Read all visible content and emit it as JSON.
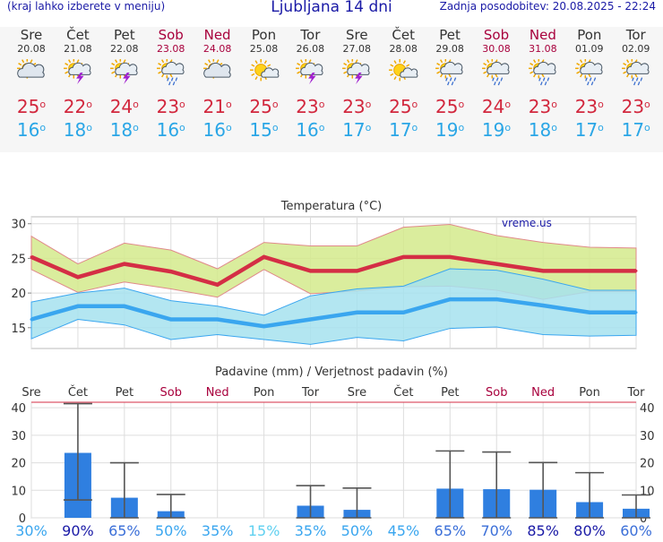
{
  "header": {
    "note": "(kraj lahko izberete v meniju)",
    "title": "Ljubljana 14 dni",
    "updated": "Zadnja posodobitev: 20.08.2025 - 22:24"
  },
  "days": [
    {
      "name": "Sre",
      "date": "20.08",
      "weekend": false,
      "icon": "cloud-sun-icon",
      "tmax": "25",
      "tmin": "16"
    },
    {
      "name": "Čet",
      "date": "21.08",
      "weekend": false,
      "icon": "sun-thunder-icon",
      "tmax": "22",
      "tmin": "18"
    },
    {
      "name": "Pet",
      "date": "22.08",
      "weekend": false,
      "icon": "sun-thunder-icon",
      "tmax": "24",
      "tmin": "18"
    },
    {
      "name": "Sob",
      "date": "23.08",
      "weekend": true,
      "icon": "sun-rain-icon",
      "tmax": "23",
      "tmin": "16"
    },
    {
      "name": "Ned",
      "date": "24.08",
      "weekend": true,
      "icon": "cloud-sun-icon",
      "tmax": "21",
      "tmin": "16"
    },
    {
      "name": "Pon",
      "date": "25.08",
      "weekend": false,
      "icon": "sun-cloud-icon",
      "tmax": "25",
      "tmin": "15"
    },
    {
      "name": "Tor",
      "date": "26.08",
      "weekend": false,
      "icon": "sun-thunder-icon",
      "tmax": "23",
      "tmin": "16"
    },
    {
      "name": "Sre",
      "date": "27.08",
      "weekend": false,
      "icon": "sun-thunder-icon",
      "tmax": "23",
      "tmin": "17"
    },
    {
      "name": "Čet",
      "date": "28.08",
      "weekend": false,
      "icon": "sun-cloud-icon",
      "tmax": "25",
      "tmin": "17"
    },
    {
      "name": "Pet",
      "date": "29.08",
      "weekend": false,
      "icon": "sun-rain-icon",
      "tmax": "25",
      "tmin": "19"
    },
    {
      "name": "Sob",
      "date": "30.08",
      "weekend": true,
      "icon": "sun-rain-icon",
      "tmax": "24",
      "tmin": "19"
    },
    {
      "name": "Ned",
      "date": "31.08",
      "weekend": true,
      "icon": "sun-rain-icon",
      "tmax": "23",
      "tmin": "18"
    },
    {
      "name": "Pon",
      "date": "01.09",
      "weekend": false,
      "icon": "sun-rain-icon",
      "tmax": "23",
      "tmin": "17"
    },
    {
      "name": "Tor",
      "date": "02.09",
      "weekend": false,
      "icon": "sun-rain-icon",
      "tmax": "23",
      "tmin": "17"
    }
  ],
  "chart_data": [
    {
      "type": "line",
      "title": "Temperatura (°C)",
      "watermark": "vreme.us",
      "ylim": [
        12,
        31
      ],
      "yticks": [
        15,
        20,
        25,
        30
      ],
      "grid": true,
      "x": [
        0,
        1,
        2,
        3,
        4,
        5,
        6,
        7,
        8,
        9,
        10,
        11,
        12,
        13
      ],
      "series": [
        {
          "name": "max",
          "color": "#d42e45",
          "values": [
            25.2,
            22.3,
            24.2,
            23.1,
            21.2,
            25.2,
            23.2,
            23.2,
            25.2,
            25.2,
            24.2,
            23.2,
            23.2,
            23.2
          ]
        },
        {
          "name": "min",
          "color": "#3aa6ef",
          "values": [
            16.2,
            18.1,
            18.1,
            16.2,
            16.2,
            15.2,
            16.2,
            17.2,
            17.2,
            19.1,
            19.1,
            18.2,
            17.2,
            17.2
          ]
        }
      ],
      "bands": [
        {
          "name": "max-range",
          "fill": "#d4ea8c",
          "upper": [
            28.2,
            24.2,
            27.2,
            26.2,
            23.5,
            27.3,
            26.8,
            26.8,
            29.5,
            29.9,
            28.3,
            27.3,
            26.6,
            26.5
          ],
          "lower": [
            23.4,
            20.1,
            21.6,
            20.6,
            19.4,
            23.4,
            19.9,
            20.3,
            20.9,
            21.0,
            20.4,
            19.1,
            20.2,
            20.2
          ]
        },
        {
          "name": "min-range",
          "fill": "#a6e2ee",
          "upper": [
            18.7,
            20.0,
            20.7,
            18.9,
            18.1,
            16.8,
            19.6,
            20.6,
            21.0,
            23.5,
            23.3,
            22.0,
            20.4,
            20.4
          ],
          "lower": [
            13.4,
            16.2,
            15.4,
            13.3,
            14.0,
            13.3,
            12.6,
            13.6,
            13.1,
            14.9,
            15.1,
            14.0,
            13.8,
            13.9
          ]
        }
      ]
    },
    {
      "type": "bar",
      "title": "Padavine (mm) / Verjetnost padavin (%)",
      "ylim": [
        0,
        42
      ],
      "yticks": [
        0,
        10,
        20,
        30,
        40
      ],
      "categories": [
        "Sre",
        "Čet",
        "Pet",
        "Sob",
        "Ned",
        "Pon",
        "Tor",
        "Sre",
        "Čet",
        "Pet",
        "Sob",
        "Ned",
        "Pon",
        "Tor"
      ],
      "weekend": [
        false,
        false,
        false,
        true,
        true,
        false,
        false,
        false,
        false,
        false,
        true,
        true,
        false,
        false
      ],
      "values": [
        0,
        23.6,
        7.3,
        2.4,
        0,
        0,
        4.4,
        2.9,
        0,
        10.6,
        10.4,
        10.2,
        5.7,
        3.3
      ],
      "err_low": [
        0,
        6.5,
        0,
        0,
        0,
        0,
        0,
        0,
        0,
        0,
        0,
        0,
        0,
        0
      ],
      "err_high": [
        0,
        41.5,
        20.0,
        8.5,
        0,
        0,
        11.7,
        10.8,
        0,
        24.3,
        23.9,
        20.1,
        16.4,
        8.3
      ],
      "probability": [
        "30%",
        "90%",
        "65%",
        "50%",
        "35%",
        "15%",
        "35%",
        "50%",
        "45%",
        "65%",
        "70%",
        "85%",
        "80%",
        "60%"
      ],
      "probability_values": [
        30,
        90,
        65,
        50,
        35,
        15,
        35,
        50,
        45,
        65,
        70,
        85,
        80,
        60
      ],
      "bar_color": "#2f7fe0"
    }
  ]
}
